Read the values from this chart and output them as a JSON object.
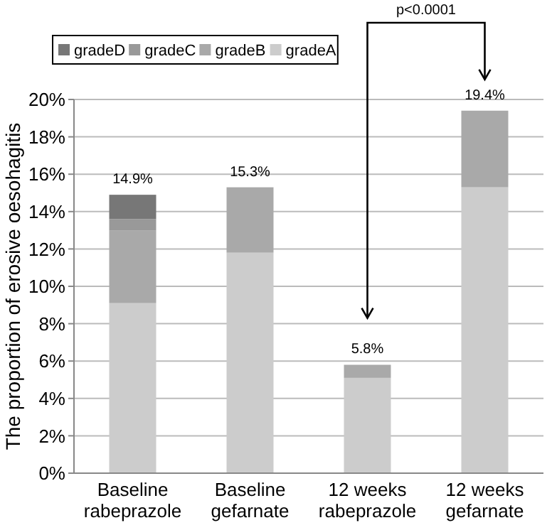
{
  "chart_data": {
    "type": "bar",
    "stacked": true,
    "ylabel": "The proportion of erosive oesohagitis",
    "categories": [
      "Baseline rabeprazole",
      "Baseline gefarnate",
      "12 weeks rabeprazole",
      "12 weeks gefarnate"
    ],
    "series": [
      {
        "name": "gradeA",
        "color": "#cccccc",
        "values": [
          9.1,
          11.8,
          5.1,
          15.3
        ]
      },
      {
        "name": "gradeB",
        "color": "#a9a9a9",
        "values": [
          3.9,
          3.5,
          0.7,
          4.1
        ]
      },
      {
        "name": "gradeC",
        "color": "#999999",
        "values": [
          0.6,
          0,
          0,
          0
        ]
      },
      {
        "name": "gradeD",
        "color": "#777777",
        "values": [
          1.3,
          0,
          0,
          0
        ]
      }
    ],
    "totals": [
      "14.9%",
      "15.3%",
      "5.8%",
      "19.4%"
    ],
    "ylim": [
      0,
      20
    ],
    "yticks": [
      {
        "value": 0,
        "label": "0%"
      },
      {
        "value": 2,
        "label": "2%"
      },
      {
        "value": 4,
        "label": "4%"
      },
      {
        "value": 6,
        "label": "6%"
      },
      {
        "value": 8,
        "label": "8%"
      },
      {
        "value": 10,
        "label": "10%"
      },
      {
        "value": 12,
        "label": "12%"
      },
      {
        "value": 14,
        "label": "14%"
      },
      {
        "value": 16,
        "label": "16%"
      },
      {
        "value": 18,
        "label": "18%"
      },
      {
        "value": 20,
        "label": "20%"
      }
    ],
    "grid": "y",
    "legend": "top left",
    "annotations": [
      "p<0.0001"
    ]
  }
}
